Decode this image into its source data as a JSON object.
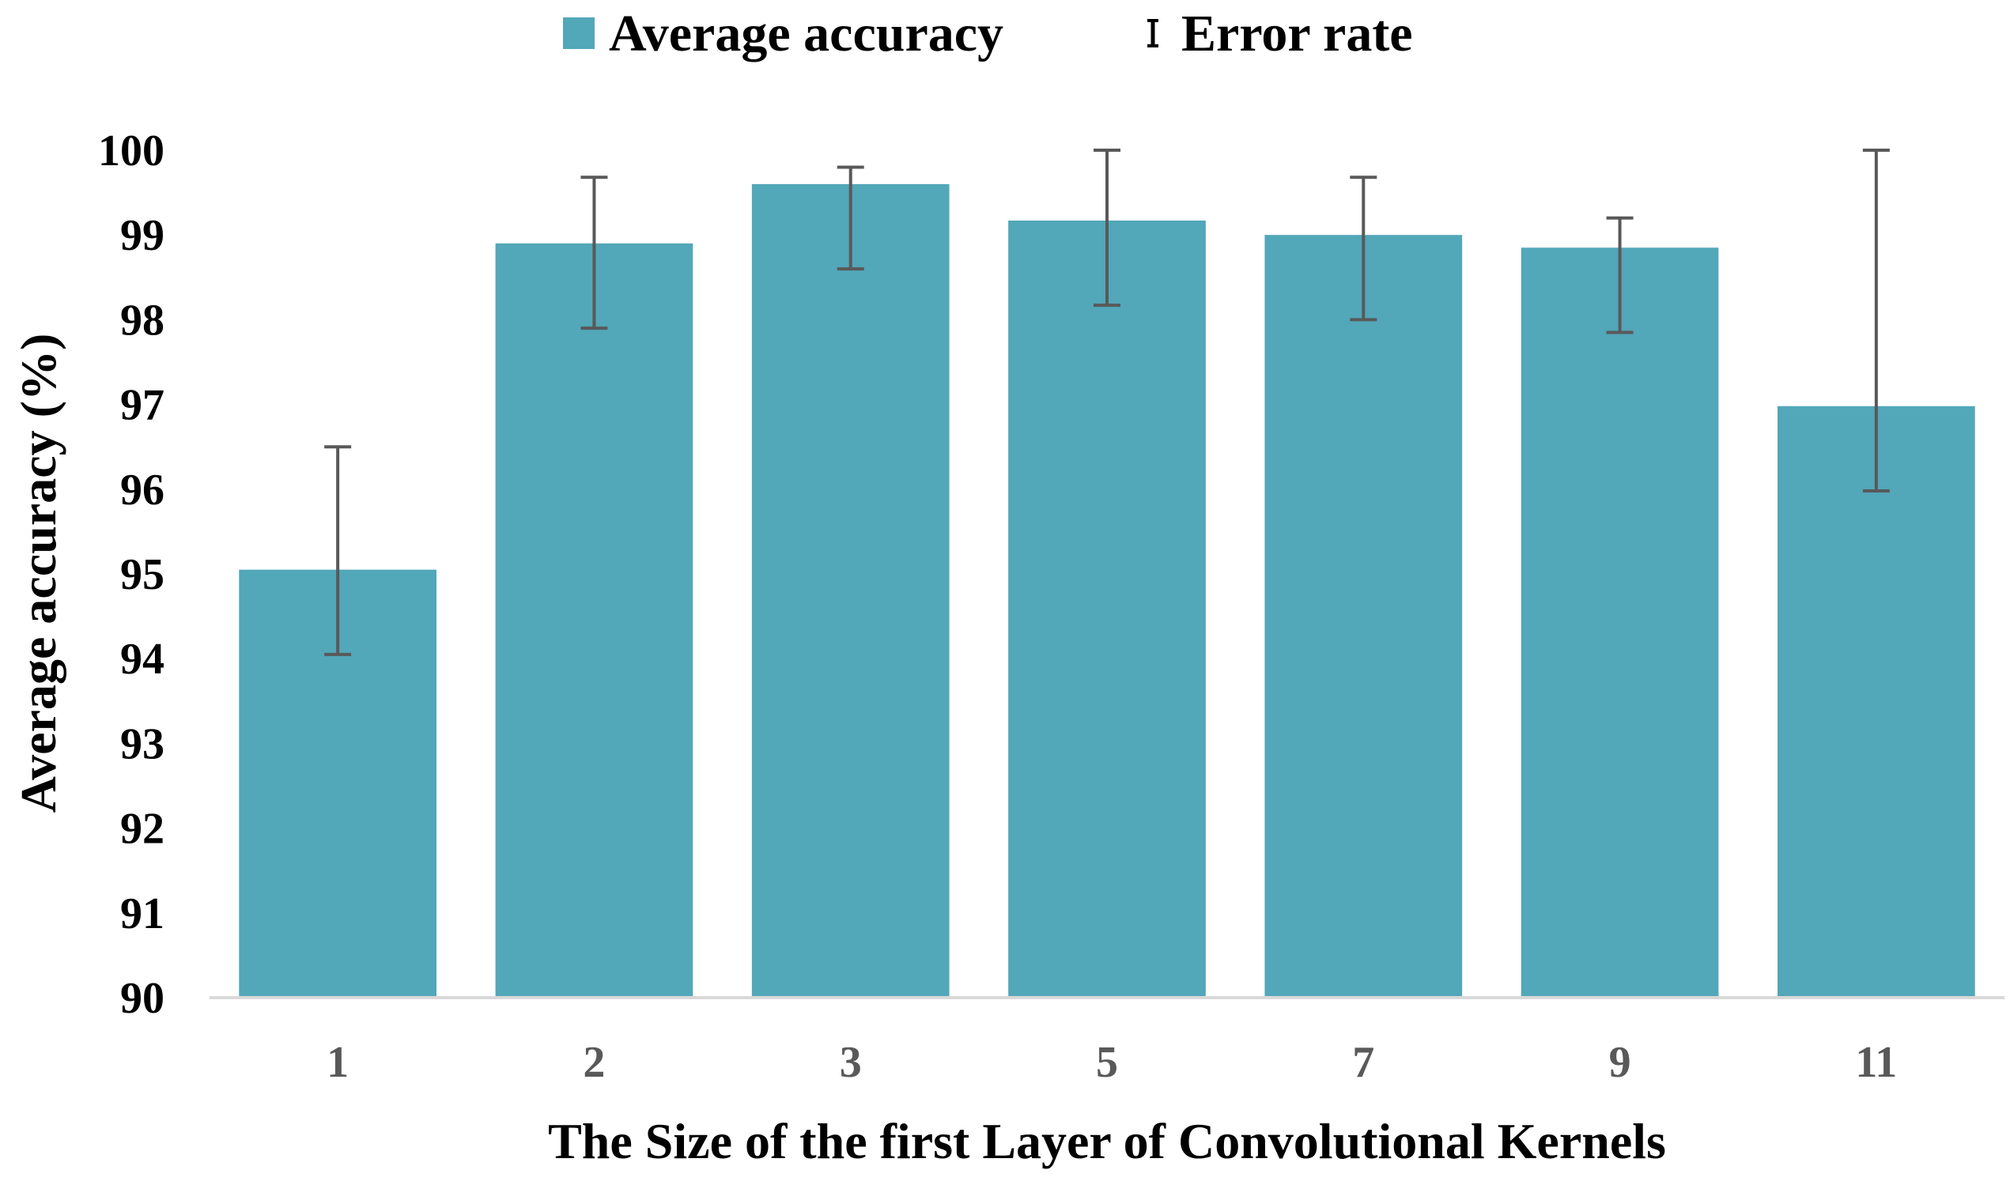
{
  "chart_data": {
    "type": "bar",
    "categories": [
      "1",
      "2",
      "3",
      "5",
      "7",
      "9",
      "11"
    ],
    "series": [
      {
        "name": "Average accuracy",
        "values": [
          95.05,
          98.9,
          99.6,
          99.17,
          99.0,
          98.85,
          96.98
        ],
        "error_low": [
          94.05,
          97.9,
          98.6,
          98.17,
          98.0,
          97.85,
          95.98
        ],
        "error_high": [
          96.5,
          99.68,
          99.8,
          100.0,
          99.68,
          99.2,
          100.0
        ]
      }
    ],
    "error_series_name": "Error rate",
    "xlabel": "The Size of the first Layer of Convolutional Kernels",
    "ylabel": "Average accuracy (%)",
    "ylim": [
      90,
      100
    ],
    "yticks": [
      "90",
      "91",
      "92",
      "93",
      "94",
      "95",
      "96",
      "97",
      "98",
      "99",
      "100"
    ],
    "grid": false,
    "legend_position": "top-center",
    "colors": {
      "bar": "#52A7B9",
      "error_bar": "#595959",
      "axis": "#D9D9D9"
    }
  }
}
